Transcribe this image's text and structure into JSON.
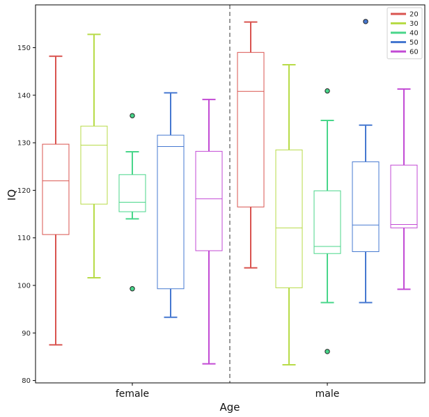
{
  "chart_data": {
    "type": "boxplot",
    "title": "",
    "xlabel": "Age",
    "ylabel": "IQ",
    "ylim": [
      79.5,
      159
    ],
    "yticks": [
      80,
      90,
      100,
      110,
      120,
      130,
      140,
      150
    ],
    "categories": [
      "female",
      "male"
    ],
    "divider": "dashed vertical line between female and male",
    "legend_position": "top-right",
    "series": [
      {
        "name": "20",
        "color": "#d9534f",
        "boxes": [
          {
            "category": "female",
            "whislo": 87.5,
            "q1": 110.7,
            "med": 122.0,
            "q3": 129.7,
            "whishi": 148.2,
            "fliers": []
          },
          {
            "category": "male",
            "whislo": 103.7,
            "q1": 116.5,
            "med": 140.8,
            "q3": 149.0,
            "whishi": 155.4,
            "fliers": []
          }
        ]
      },
      {
        "name": "30",
        "color": "#b7db47",
        "boxes": [
          {
            "category": "female",
            "whislo": 101.6,
            "q1": 117.1,
            "med": 129.5,
            "q3": 133.5,
            "whishi": 152.8,
            "fliers": []
          },
          {
            "category": "male",
            "whislo": 83.3,
            "q1": 99.5,
            "med": 112.1,
            "q3": 128.5,
            "whishi": 146.4,
            "fliers": []
          }
        ]
      },
      {
        "name": "40",
        "color": "#48d68a",
        "boxes": [
          {
            "category": "female",
            "whislo": 114.0,
            "q1": 115.5,
            "med": 117.5,
            "q3": 123.3,
            "whishi": 128.1,
            "fliers": [
              135.7,
              99.3
            ]
          },
          {
            "category": "male",
            "whislo": 96.4,
            "q1": 106.7,
            "med": 108.2,
            "q3": 119.9,
            "whishi": 134.7,
            "fliers": [
              140.9,
              86.1
            ]
          }
        ]
      },
      {
        "name": "50",
        "color": "#4678d0",
        "boxes": [
          {
            "category": "female",
            "whislo": 93.3,
            "q1": 99.3,
            "med": 129.2,
            "q3": 131.6,
            "whishi": 140.5,
            "fliers": []
          },
          {
            "category": "male",
            "whislo": 96.4,
            "q1": 107.1,
            "med": 112.7,
            "q3": 126.0,
            "whishi": 133.7,
            "fliers": [
              155.5
            ]
          }
        ]
      },
      {
        "name": "60",
        "color": "#c24ad4",
        "boxes": [
          {
            "category": "female",
            "whislo": 83.5,
            "q1": 107.3,
            "med": 118.2,
            "q3": 128.2,
            "whishi": 139.1,
            "fliers": []
          },
          {
            "category": "male",
            "whislo": 99.2,
            "q1": 112.1,
            "med": 112.8,
            "q3": 125.3,
            "whishi": 141.3,
            "fliers": []
          }
        ]
      }
    ]
  }
}
